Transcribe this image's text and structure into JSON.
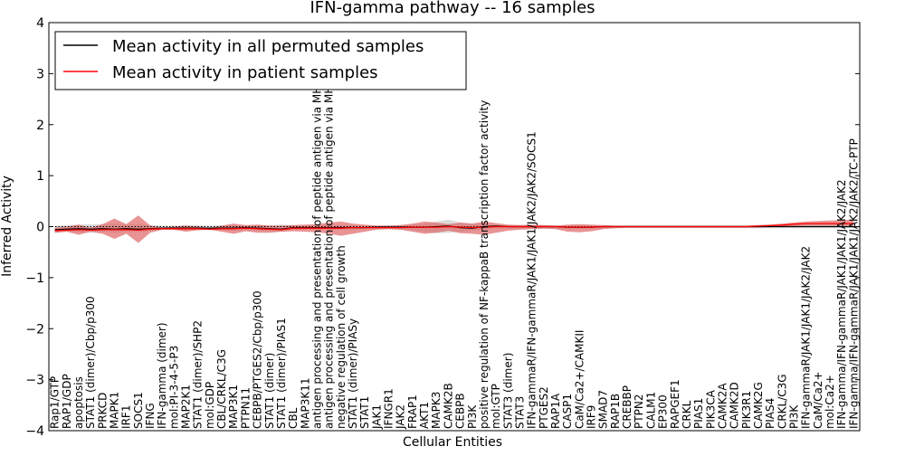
{
  "chart_data": {
    "type": "line",
    "title": "IFN-gamma pathway -- 16 samples",
    "xlabel": "Cellular Entities",
    "ylabel": "Inferred Activity",
    "ylim": [
      -4,
      4
    ],
    "yticks": [
      -4,
      -3,
      -2,
      -1,
      0,
      1,
      2,
      3,
      4
    ],
    "ytick_labels": [
      "−4",
      "−3",
      "−2",
      "−1",
      "0",
      "1",
      "2",
      "3",
      "4"
    ],
    "grid": false,
    "legend_position": "top-left",
    "categories": [
      "Rap1/GTP",
      "RAP1/GDP",
      "apoptosis",
      "STAT1 (dimer)/Cbp/p300",
      "PRKCD",
      "MAPK1",
      "IRF1",
      "SOCS1",
      "IFNG",
      "IFN-gamma (dimer)",
      "mol:PI-3-4-5-P3",
      "MAP2K1",
      "STAT1 (dimer)/SHP2",
      "mol:GDP",
      "CBL/CRKL/C3G",
      "MAP3K1",
      "PTPN11",
      "CEBPB/PTGES2/Cbp/p300",
      "STAT1 (dimer)",
      "STAT1 (dimer)/PIAS1",
      "CBL",
      "MAP3K11",
      "antigen processing and presentation of peptide antigen via MHC class I",
      "antigen processing and presentation of peptide antigen via MHC class II",
      "negative regulation of cell growth",
      "STAT1 (dimer)/PIASy",
      "STAT1",
      "JAK1",
      "IFNGR1",
      "JAK2",
      "FRAP1",
      "AKT1",
      "MAPK3",
      "CAMK2B",
      "CEBPB",
      "PI3K",
      "positive regulation of NF-kappaB transcription factor activity",
      "mol:GTP",
      "STAT3 (dimer)",
      "STAT3",
      "IFN-gammaR/IFN-gammaR/JAK1/JAK1/JAK2/JAK2/SOCS1",
      "PTGES2",
      "RAP1A",
      "CASP1",
      "CaM/Ca2+/CAMKII",
      "IRF9",
      "SMAD7",
      "RAP1B",
      "CREBBP",
      "PTPN2",
      "CALM1",
      "EP300",
      "RAPGEF1",
      "CRKL",
      "PIAS1",
      "PIK3CA",
      "CAMK2A",
      "CAMK2D",
      "PIK3R1",
      "CAMK2G",
      "PIAS4",
      "CRKL/C3G",
      "PI3K",
      "IFN-gammaR/JAK1/JAK1/JAK2/JAK2",
      "CaM/Ca2+",
      "mol:Ca2+",
      "IFN-gamma/IFN-gammaR/JAK1/JAK1/JAK2/JAK2",
      "IFN-gamma/IFN-gammaR/JAK1/JAK1/JAK2/JAK2/TC-PTP"
    ],
    "series": [
      {
        "name": "Mean activity in all permuted samples",
        "color": "#000000",
        "values": [
          -0.06,
          -0.05,
          -0.04,
          -0.05,
          -0.04,
          -0.05,
          -0.04,
          -0.05,
          -0.04,
          -0.03,
          -0.03,
          -0.03,
          -0.03,
          -0.03,
          -0.03,
          -0.03,
          -0.02,
          -0.03,
          -0.04,
          -0.05,
          -0.02,
          -0.02,
          -0.02,
          -0.02,
          -0.02,
          -0.02,
          -0.02,
          -0.01,
          -0.01,
          -0.01,
          -0.01,
          -0.01,
          0,
          0.01,
          -0.02,
          -0.03,
          0,
          0.01,
          0,
          0,
          0,
          0,
          0,
          -0.01,
          -0.01,
          -0.01,
          0,
          0,
          0,
          0,
          0,
          0,
          0,
          0,
          0,
          0,
          0,
          0,
          0,
          0,
          0,
          0,
          0,
          0,
          0,
          0,
          0,
          0
        ]
      },
      {
        "name": "Mean activity in patient samples",
        "color": "#ff0000",
        "values": [
          -0.08,
          -0.07,
          -0.06,
          -0.07,
          -0.06,
          -0.06,
          -0.06,
          -0.07,
          -0.05,
          -0.04,
          -0.04,
          -0.04,
          -0.04,
          -0.05,
          -0.04,
          -0.04,
          -0.03,
          -0.04,
          -0.05,
          -0.06,
          -0.03,
          -0.03,
          -0.03,
          -0.03,
          -0.03,
          -0.02,
          -0.02,
          -0.02,
          -0.02,
          -0.02,
          -0.01,
          -0.01,
          -0.01,
          0,
          -0.01,
          -0.02,
          -0.01,
          0,
          0,
          0,
          0,
          0,
          0,
          -0.01,
          -0.01,
          -0.01,
          0,
          0,
          0,
          0,
          0,
          0,
          0,
          0,
          0,
          0,
          0,
          0,
          0,
          0.01,
          0.02,
          0.03,
          0.05,
          0.06,
          0.06,
          0.06,
          0.06,
          0.06
        ]
      }
    ],
    "bands": [
      {
        "name": "permuted spread",
        "color": "#c8c8c8",
        "upper": [
          0.02,
          0.03,
          0.04,
          0.05,
          0.05,
          0.06,
          0.04,
          0.05,
          0.03,
          0.02,
          0.02,
          0.03,
          0.03,
          0.02,
          0.03,
          0.03,
          0.02,
          0.03,
          0.03,
          0.04,
          0.03,
          0.03,
          0.03,
          0.04,
          0.03,
          0.03,
          0.02,
          0.02,
          0.03,
          0.03,
          0.04,
          0.06,
          0.1,
          0.14,
          0.08,
          0.06,
          0.04,
          0.03,
          0.02,
          0.02,
          0.02,
          0.02,
          0.02,
          0.02,
          0.02,
          0.02,
          0.02,
          0.02,
          0.02,
          0.02,
          0.02,
          0.02,
          0.02,
          0.02,
          0.02,
          0.02,
          0.02,
          0.02,
          0.02,
          0.03,
          0.04,
          0.04,
          0.05,
          0.05,
          0.05,
          0.05,
          0.05,
          0.05
        ],
        "lower": [
          -0.12,
          -0.1,
          -0.11,
          -0.12,
          -0.1,
          -0.12,
          -0.1,
          -0.11,
          -0.08,
          -0.07,
          -0.07,
          -0.08,
          -0.07,
          -0.07,
          -0.07,
          -0.08,
          -0.07,
          -0.08,
          -0.09,
          -0.1,
          -0.06,
          -0.06,
          -0.06,
          -0.07,
          -0.06,
          -0.06,
          -0.05,
          -0.05,
          -0.05,
          -0.06,
          -0.07,
          -0.1,
          -0.13,
          -0.12,
          -0.1,
          -0.08,
          -0.06,
          -0.04,
          -0.04,
          -0.04,
          -0.04,
          -0.04,
          -0.04,
          -0.05,
          -0.05,
          -0.04,
          -0.03,
          -0.03,
          -0.03,
          -0.03,
          -0.03,
          -0.03,
          -0.03,
          -0.03,
          -0.03,
          -0.03,
          -0.03,
          -0.03,
          -0.03,
          -0.03,
          -0.03,
          -0.03,
          -0.03,
          -0.03,
          -0.03,
          -0.03,
          -0.03,
          -0.03
        ]
      },
      {
        "name": "patient spread",
        "color": "#e06666",
        "upper": [
          -0.02,
          0,
          0.04,
          -0.02,
          0.05,
          0.16,
          0.05,
          0.22,
          0.02,
          -0.02,
          0,
          0.02,
          0,
          -0.03,
          0.02,
          0.06,
          0.03,
          0.04,
          0.02,
          0.02,
          0.03,
          0.04,
          0.05,
          0.08,
          0.1,
          0.06,
          0.04,
          0.02,
          0.02,
          0.03,
          0.06,
          0.1,
          0.08,
          0.05,
          0.08,
          0.06,
          0.1,
          0.07,
          0.04,
          0.03,
          0.04,
          0.03,
          0.02,
          0.04,
          0.05,
          0.04,
          0.03,
          0.02,
          0.02,
          0.02,
          0.02,
          0.02,
          0.02,
          0.02,
          0.02,
          0.02,
          0.02,
          0.02,
          0.02,
          0.03,
          0.04,
          0.06,
          0.08,
          0.1,
          0.11,
          0.12,
          0.13,
          0.14
        ],
        "lower": [
          -0.12,
          -0.1,
          -0.16,
          -0.1,
          -0.14,
          -0.24,
          -0.14,
          -0.32,
          -0.12,
          -0.06,
          -0.06,
          -0.1,
          -0.07,
          -0.06,
          -0.1,
          -0.14,
          -0.09,
          -0.12,
          -0.12,
          -0.1,
          -0.09,
          -0.1,
          -0.11,
          -0.14,
          -0.18,
          -0.14,
          -0.1,
          -0.06,
          -0.05,
          -0.06,
          -0.1,
          -0.14,
          -0.12,
          -0.08,
          -0.13,
          -0.14,
          -0.16,
          -0.12,
          -0.08,
          -0.06,
          -0.05,
          -0.04,
          -0.05,
          -0.1,
          -0.11,
          -0.09,
          -0.05,
          -0.03,
          -0.02,
          -0.02,
          -0.02,
          -0.02,
          -0.02,
          -0.02,
          -0.02,
          -0.02,
          -0.02,
          -0.02,
          -0.02,
          -0.02,
          -0.01,
          0,
          0.01,
          0.02,
          0.02,
          0.02,
          0.02,
          0.02
        ]
      }
    ]
  }
}
